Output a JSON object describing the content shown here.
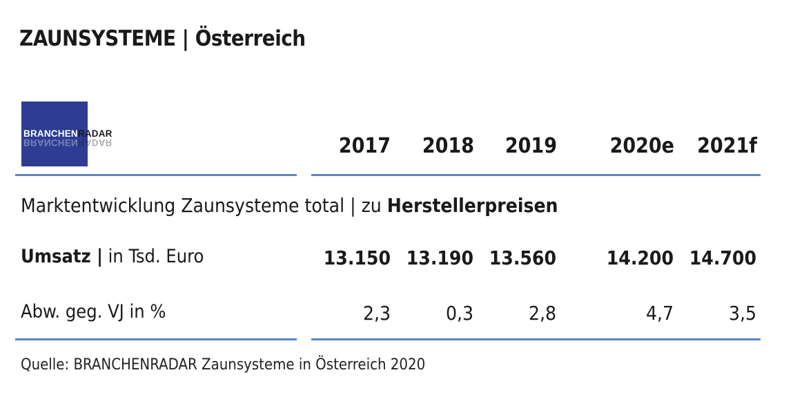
{
  "title": "ZAUNSYSTEME | Österreich",
  "logo": {
    "part1": "BRANCHEN",
    "part2": "RADAR"
  },
  "years": [
    "2017",
    "2018",
    "2019",
    "2020e",
    "2021f"
  ],
  "section": {
    "prefix": "Marktentwicklung Zaunsysteme total | zu ",
    "bold": "Herstellerpreisen"
  },
  "rows": [
    {
      "label_bold": "Umsatz |",
      "label_rest": " in Tsd. Euro",
      "values": [
        "13.150",
        "13.190",
        "13.560",
        "14.200",
        "14.700"
      ]
    },
    {
      "label_bold": "",
      "label_rest": "Abw. geg. VJ in %",
      "values": [
        "2,3",
        "0,3",
        "2,8",
        "4,7",
        "3,5"
      ]
    }
  ],
  "source": "Quelle: BRANCHENRADAR Zaunsysteme in Österreich 2020",
  "colors": {
    "logo_bg": "#2e3d93",
    "rule": "#5b87c5"
  }
}
